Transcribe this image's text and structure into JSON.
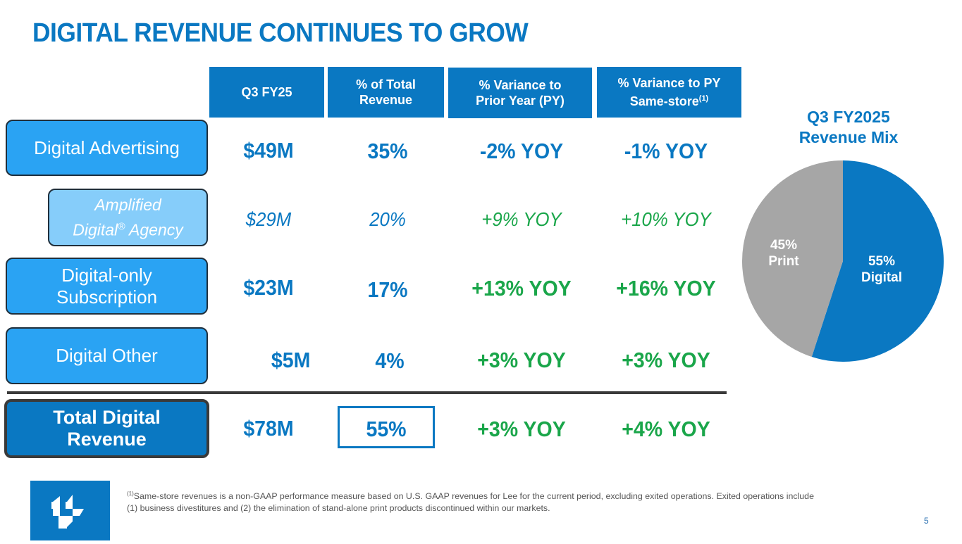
{
  "title": "DIGITAL REVENUE CONTINUES TO GROW",
  "columns": [
    {
      "label": "Q3 FY25",
      "sup": ""
    },
    {
      "label_line1": "% of Total",
      "label_line2": "Revenue"
    },
    {
      "label_line1": "% Variance to",
      "label_line2": "Prior Year (PY)"
    },
    {
      "label_line1": "% Variance to PY",
      "label_line2": "Same-store",
      "sup": "(1)"
    }
  ],
  "rows": [
    {
      "label": "Digital Advertising",
      "revenue": "$49M",
      "pct_total": "35%",
      "var_py": "-2% YOY",
      "var_same_store": "-1% YOY"
    },
    {
      "label_line1": "Amplified",
      "label_line2": "Digital",
      "label_reg": "®",
      "label_line2b": " Agency",
      "revenue": "$29M",
      "pct_total": "20%",
      "var_py": "+9% YOY",
      "var_same_store": "+10% YOY"
    },
    {
      "label_line1": "Digital-only",
      "label_line2": "Subscription",
      "revenue": "$23M",
      "pct_total": "17%",
      "var_py": "+13% YOY",
      "var_same_store": "+16% YOY"
    },
    {
      "label": "Digital Other",
      "revenue": "$5M",
      "pct_total": "4%",
      "var_py": "+3% YOY",
      "var_same_store": "+3% YOY"
    },
    {
      "label_line1": "Total Digital",
      "label_line2": "Revenue",
      "revenue": "$78M",
      "pct_total": "55%",
      "var_py": "+3% YOY",
      "var_same_store": "+4% YOY"
    }
  ],
  "colors": {
    "brand_blue": "#0a78c2",
    "positive_green": "#1aa64a",
    "print_gray": "#a6a6a6"
  },
  "chart_data": {
    "type": "pie",
    "title": "Q3 FY2025 Revenue Mix",
    "title_line1": "Q3 FY2025",
    "title_line2": "Revenue Mix",
    "slices": [
      {
        "name": "Digital",
        "value": 55,
        "label_pct": "55%",
        "label_name": "Digital",
        "color": "#0a78c2"
      },
      {
        "name": "Print",
        "value": 45,
        "label_pct": "45%",
        "label_name": "Print",
        "color": "#a6a6a6"
      }
    ]
  },
  "footnote": {
    "sup": "(1)",
    "line1": "Same-store revenues is a non-GAAP performance measure based on U.S. GAAP revenues for Lee for the current period, excluding exited operations. Exited operations include",
    "line2": "(1) business divestitures and (2) the elimination of stand-alone print products discontinued within our markets."
  },
  "page_number": "5"
}
